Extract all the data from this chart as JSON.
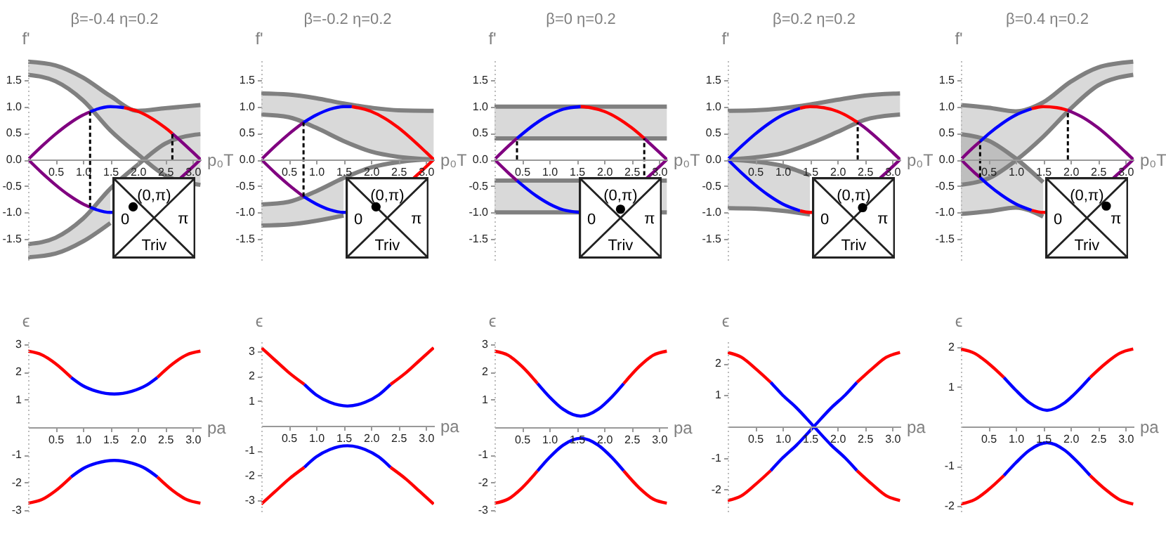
{
  "chart_data": [
    {
      "type": "line",
      "title": "β=-0.4 η=0.2",
      "xlabel": "p₀T",
      "ylabel": "f'",
      "xlim": [
        0,
        3.15
      ],
      "ylim": [
        -1.9,
        1.9
      ],
      "xticks": [
        0.5,
        {
          "value": 1,
          "label": "1.0"
        },
        1.5,
        {
          "value": 2,
          "label": "2.0"
        },
        2.5,
        {
          "value": 3,
          "label": "3.0"
        }
      ],
      "yticks": [
        -1.5,
        {
          "value": -1,
          "label": "-1.0"
        },
        -0.5,
        {
          "value": 0,
          "label": "0.0"
        },
        0.5,
        {
          "value": 1,
          "label": "1.0"
        },
        1.5
      ],
      "annotations": [
        "(0,π)",
        "0",
        "π",
        "Triv"
      ],
      "series": [
        {
          "color": "#808080",
          "x": [
            0,
            0.5,
            1.0,
            1.5,
            2.0,
            2.5,
            3.1416
          ],
          "values": [
            1.85,
            1.78,
            1.55,
            1.2,
            0.92,
            0.97,
            1.03
          ],
          "lower": [
            1.6,
            1.48,
            1.12,
            0.55,
            0.1,
            -0.3,
            -0.48
          ],
          "upper": [
            1.85,
            1.78,
            1.55,
            1.2,
            0.92,
            0.97,
            1.03
          ]
        },
        {
          "color": "#808080",
          "x": [
            0,
            0.5,
            1.0,
            1.5,
            2.0,
            2.5,
            3.05,
            3.1416
          ],
          "values": [
            -1.6,
            -1.48,
            -1.12,
            -0.55,
            -0.1,
            0.3,
            0.47,
            0.48
          ],
          "lower": [
            -1.85,
            -1.78,
            -1.55,
            -1.2,
            null,
            null,
            null,
            null
          ],
          "upper": [
            -1.6,
            -1.48,
            -1.12,
            -0.55,
            null,
            null,
            null,
            null
          ]
        },
        {
          "color": "#808080",
          "x": [
            0,
            0.5,
            1.0,
            1.5,
            2.0,
            2.5,
            3.1416
          ],
          "values": [
            1.6,
            1.48,
            1.12,
            0.55,
            0.1,
            -0.3,
            -0.48
          ]
        },
        {
          "color": "#808080",
          "x": [
            0,
            0.5,
            1.0,
            1.5
          ],
          "values": [
            -1.85,
            -1.78,
            -1.55,
            -1.2
          ]
        },
        {
          "color": "#800080",
          "x": [
            0,
            0.25,
            0.5,
            0.75,
            1.0,
            1.13
          ],
          "values": [
            0,
            0.25,
            0.48,
            0.68,
            0.84,
            0.9
          ]
        },
        {
          "color": "#0000ff",
          "x": [
            1.13,
            1.25,
            1.5,
            1.75
          ],
          "values": [
            0.9,
            0.95,
            1,
            0.98
          ]
        },
        {
          "color": "#ff0000",
          "x": [
            1.75,
            2.0,
            2.25,
            2.5,
            2.63
          ],
          "values": [
            0.98,
            0.91,
            0.78,
            0.6,
            0.49
          ]
        },
        {
          "color": "#800080",
          "x": [
            2.63,
            2.75,
            3.0,
            3.1416
          ],
          "values": [
            0.49,
            0.38,
            0.14,
            0
          ]
        },
        {
          "color": "#800080",
          "x": [
            0,
            0.25,
            0.5,
            0.75,
            1.0,
            1.13
          ],
          "values": [
            0,
            -0.25,
            -0.48,
            -0.68,
            -0.84,
            -0.9
          ]
        },
        {
          "color": "#0000ff",
          "x": [
            1.13,
            1.25,
            1.5,
            1.56
          ],
          "values": [
            -0.9,
            -0.95,
            -1,
            -1
          ]
        },
        {
          "color": "#800080",
          "x": [
            2.78,
            3.0,
            3.1416
          ],
          "values": [
            -0.35,
            -0.14,
            0
          ]
        },
        {
          "type": "line",
          "line_style": "dashed",
          "color": "#000000",
          "x": [
            1.13,
            1.13
          ],
          "values": [
            -0.9,
            0.9
          ]
        },
        {
          "type": "line",
          "line_style": "dashed",
          "color": "#000000",
          "x": [
            2.63,
            2.63
          ],
          "values": [
            0,
            0.49
          ]
        }
      ]
    },
    {
      "type": "line",
      "title": "β=-0.2 η=0.2",
      "xlabel": "p₀T",
      "ylabel": "f'",
      "xlim": [
        0,
        3.15
      ],
      "ylim": [
        -1.9,
        1.9
      ],
      "xticks": [
        0.5,
        {
          "value": 1,
          "label": "1.0"
        },
        1.5,
        {
          "value": 2,
          "label": "2.0"
        },
        2.5,
        {
          "value": 3,
          "label": "3.0"
        }
      ],
      "yticks": [
        -1.5,
        {
          "value": -1,
          "label": "-1.0"
        },
        -0.5,
        {
          "value": 0,
          "label": "0.0"
        },
        0.5,
        {
          "value": 1,
          "label": "1.0"
        },
        1.5
      ],
      "annotations": [
        "(0,π)",
        "0",
        "π",
        "Triv"
      ],
      "series": [
        {
          "color": "#808080",
          "x": [
            0,
            0.5,
            1.0,
            1.5,
            2.0,
            2.5,
            3.1416
          ],
          "values": [
            1.25,
            1.23,
            1.16,
            1.06,
            0.98,
            0.93,
            0.92
          ],
          "lower": [
            0.85,
            0.8,
            0.6,
            0.35,
            0.15,
            0.05,
            0
          ],
          "upper": [
            1.25,
            1.23,
            1.16,
            1.06,
            0.98,
            0.93,
            0.92
          ]
        },
        {
          "color": "#808080",
          "x": [
            0,
            0.5,
            1.0,
            1.5,
            2.0,
            2.5,
            3.05,
            3.1416
          ],
          "values": [
            -0.85,
            -0.8,
            -0.6,
            -0.35,
            -0.15,
            -0.05,
            0,
            0
          ],
          "lower": [
            -1.25,
            -1.23,
            -1.16,
            -1.06,
            null,
            null,
            null,
            null
          ],
          "upper": [
            -0.85,
            -0.8,
            -0.6,
            -0.35,
            null,
            null,
            null,
            null
          ]
        },
        {
          "color": "#808080",
          "x": [
            0,
            0.5,
            1.0,
            1.5,
            2.0,
            2.5,
            3.1416
          ],
          "values": [
            0.85,
            0.8,
            0.6,
            0.35,
            0.15,
            0.05,
            0
          ]
        },
        {
          "color": "#808080",
          "x": [
            0,
            0.5,
            1.0,
            1.5
          ],
          "values": [
            -1.25,
            -1.23,
            -1.16,
            -1.06
          ]
        },
        {
          "color": "#800080",
          "x": [
            0,
            0.25,
            0.5,
            0.77
          ],
          "values": [
            0,
            0.25,
            0.48,
            0.7
          ]
        },
        {
          "color": "#0000ff",
          "x": [
            0.77,
            1.0,
            1.25,
            1.5,
            1.65
          ],
          "values": [
            0.7,
            0.84,
            0.95,
            1,
            1
          ]
        },
        {
          "color": "#ff0000",
          "x": [
            1.65,
            2.0,
            2.25,
            2.5,
            2.75,
            3.0,
            3.1416
          ],
          "values": [
            1,
            0.91,
            0.78,
            0.6,
            0.38,
            0.14,
            0
          ]
        },
        {
          "color": "#800080",
          "x": [
            0,
            0.25,
            0.5,
            0.77
          ],
          "values": [
            0,
            -0.25,
            -0.48,
            -0.7
          ]
        },
        {
          "color": "#0000ff",
          "x": [
            0.77,
            1.0,
            1.25,
            1.5,
            1.56
          ],
          "values": [
            -0.7,
            -0.84,
            -0.95,
            -1,
            -1
          ]
        },
        {
          "color": "#ff0000",
          "x": [
            2.78,
            3.0,
            3.1416
          ],
          "values": [
            -0.35,
            -0.14,
            0
          ]
        },
        {
          "type": "line",
          "line_style": "dashed",
          "color": "#000000",
          "x": [
            0.77,
            0.77
          ],
          "values": [
            -0.7,
            0.7
          ]
        }
      ]
    },
    {
      "type": "line",
      "title": "β=0 η=0.2",
      "xlabel": "p₀T",
      "ylabel": "f'",
      "xlim": [
        0,
        3.15
      ],
      "ylim": [
        -1.9,
        1.9
      ],
      "xticks": [
        0.5,
        {
          "value": 1,
          "label": "1.0"
        },
        1.5,
        {
          "value": 2,
          "label": "2.0"
        },
        2.5,
        {
          "value": 3,
          "label": "3.0"
        }
      ],
      "yticks": [
        -1.5,
        {
          "value": -1,
          "label": "-1.0"
        },
        -0.5,
        {
          "value": 0,
          "label": "0.0"
        },
        0.5,
        {
          "value": 1,
          "label": "1.0"
        },
        1.5
      ],
      "annotations": [
        "(0,π)",
        "0",
        "π",
        "Triv"
      ],
      "series": [
        {
          "color": "#808080",
          "x": [
            0,
            3.1416
          ],
          "values": [
            1,
            1
          ],
          "lower": [
            0.4,
            0.4
          ],
          "upper": [
            1,
            1
          ]
        },
        {
          "color": "#808080",
          "x": [
            0,
            3.1416
          ],
          "values": [
            -0.4,
            -0.4
          ],
          "lower": [
            -1,
            -1
          ],
          "upper": [
            -0.4,
            -0.4
          ]
        },
        {
          "color": "#808080",
          "x": [
            0,
            3.1416
          ],
          "values": [
            0.4,
            0.4
          ]
        },
        {
          "color": "#808080",
          "x": [
            0,
            3.1416
          ],
          "values": [
            -1,
            -1
          ]
        },
        {
          "color": "#800080",
          "x": [
            0,
            0.25,
            0.41
          ],
          "values": [
            0,
            0.25,
            0.4
          ]
        },
        {
          "color": "#0000ff",
          "x": [
            0.41,
            0.75,
            1.0,
            1.25,
            1.571
          ],
          "values": [
            0.4,
            0.68,
            0.84,
            0.95,
            1
          ]
        },
        {
          "color": "#ff0000",
          "x": [
            1.571,
            1.75,
            2.0,
            2.25,
            2.5,
            2.73
          ],
          "values": [
            1,
            0.98,
            0.91,
            0.78,
            0.6,
            0.4
          ]
        },
        {
          "color": "#800080",
          "x": [
            2.73,
            3.0,
            3.1416
          ],
          "values": [
            0.4,
            0.14,
            0
          ]
        },
        {
          "color": "#800080",
          "x": [
            0,
            0.25,
            0.41
          ],
          "values": [
            0,
            -0.25,
            -0.4
          ]
        },
        {
          "color": "#0000ff",
          "x": [
            0.41,
            0.75,
            1.0,
            1.25,
            1.56
          ],
          "values": [
            -0.4,
            -0.68,
            -0.84,
            -0.95,
            -1
          ]
        },
        {
          "color": "#800080",
          "x": [
            2.78,
            3.0,
            3.1416
          ],
          "values": [
            -0.35,
            -0.14,
            0
          ]
        },
        {
          "type": "line",
          "line_style": "dashed",
          "color": "#000000",
          "x": [
            0.41,
            0.41
          ],
          "values": [
            0,
            0.4
          ]
        },
        {
          "type": "line",
          "line_style": "dashed",
          "color": "#000000",
          "x": [
            2.73,
            2.73
          ],
          "values": [
            -0.3,
            0.4
          ]
        }
      ]
    },
    {
      "type": "line",
      "title": "β=0.2 η=0.2",
      "xlabel": "p₀T",
      "ylabel": "f'",
      "xlim": [
        0,
        3.15
      ],
      "ylim": [
        -1.9,
        1.9
      ],
      "xticks": [
        0.5,
        {
          "value": 1,
          "label": "1.0"
        },
        1.5,
        {
          "value": 2,
          "label": "2.0"
        },
        2.5,
        {
          "value": 3,
          "label": "3.0"
        }
      ],
      "yticks": [
        -1.5,
        {
          "value": -1,
          "label": "-1.0"
        },
        -0.5,
        {
          "value": 0,
          "label": "0.0"
        },
        0.5,
        {
          "value": 1,
          "label": "1.0"
        },
        1.5
      ],
      "annotations": [
        "(0,π)",
        "0",
        "π",
        "Triv"
      ],
      "series": [
        {
          "color": "#808080",
          "x": [
            0,
            0.5,
            1.0,
            1.5,
            2.0,
            2.5,
            3.1416
          ],
          "values": [
            0.92,
            0.93,
            0.97,
            1.04,
            1.13,
            1.21,
            1.25
          ],
          "lower": [
            0,
            0.04,
            0.12,
            0.3,
            0.52,
            0.75,
            0.85
          ],
          "upper": [
            0.92,
            0.93,
            0.97,
            1.04,
            1.13,
            1.21,
            1.25
          ]
        },
        {
          "color": "#808080",
          "x": [
            0,
            0.5,
            1.0,
            1.5
          ],
          "values": [
            0,
            -0.04,
            -0.12,
            -0.3
          ],
          "lower": [
            -0.92,
            -0.93,
            -0.97,
            -1.04
          ],
          "upper": [
            0,
            -0.04,
            -0.12,
            -0.3
          ]
        },
        {
          "color": "#808080",
          "x": [
            0,
            0.5,
            1.0,
            1.5,
            2.0,
            2.5,
            3.1416
          ],
          "values": [
            0,
            0.04,
            0.12,
            0.3,
            0.52,
            0.75,
            0.85
          ]
        },
        {
          "color": "#808080",
          "x": [
            0,
            0.5,
            1.0,
            1.5
          ],
          "values": [
            -0.92,
            -0.93,
            -0.97,
            -1.04
          ]
        },
        {
          "color": "#0000ff",
          "x": [
            0,
            0.25,
            0.5,
            0.75,
            1.0,
            1.32
          ],
          "values": [
            0,
            0.25,
            0.48,
            0.68,
            0.84,
            0.97
          ]
        },
        {
          "color": "#ff0000",
          "x": [
            1.32,
            1.5,
            1.75,
            2.0,
            2.25,
            2.37
          ],
          "values": [
            0.97,
            1,
            0.98,
            0.91,
            0.78,
            0.7
          ]
        },
        {
          "color": "#800080",
          "x": [
            2.37,
            2.5,
            2.75,
            3.0,
            3.1416
          ],
          "values": [
            0.7,
            0.6,
            0.38,
            0.14,
            0
          ]
        },
        {
          "color": "#0000ff",
          "x": [
            0,
            0.25,
            0.5,
            0.75,
            1.0,
            1.32
          ],
          "values": [
            0,
            -0.25,
            -0.48,
            -0.68,
            -0.84,
            -0.97
          ]
        },
        {
          "color": "#ff0000",
          "x": [
            1.32,
            1.5,
            1.56
          ],
          "values": [
            -0.97,
            -1,
            -1
          ]
        },
        {
          "color": "#800080",
          "x": [
            2.78,
            3.0,
            3.1416
          ],
          "values": [
            -0.35,
            -0.14,
            0
          ]
        },
        {
          "type": "line",
          "line_style": "dashed",
          "color": "#000000",
          "x": [
            2.37,
            2.37
          ],
          "values": [
            0,
            0.7
          ]
        }
      ]
    },
    {
      "type": "line",
      "title": "β=0.4 η=0.2",
      "xlabel": "p₀T",
      "ylabel": "f'",
      "xlim": [
        0,
        3.15
      ],
      "ylim": [
        -1.9,
        1.9
      ],
      "xticks": [
        0.5,
        {
          "value": 1,
          "label": "1.0"
        },
        1.5,
        {
          "value": 2,
          "label": "2.0"
        },
        2.5,
        {
          "value": 3,
          "label": "3.0"
        }
      ],
      "yticks": [
        -1.5,
        {
          "value": -1,
          "label": "-1.0"
        },
        -0.5,
        {
          "value": 0,
          "label": "0.0"
        },
        0.5,
        {
          "value": 1,
          "label": "1.0"
        },
        1.5
      ],
      "annotations": [
        "(0,π)",
        "0",
        "π",
        "Triv"
      ],
      "series": [
        {
          "color": "#808080",
          "x": [
            0,
            0.5,
            1.0,
            1.5,
            2.0,
            2.5,
            3.1416
          ],
          "values": [
            1.03,
            0.98,
            0.91,
            1.08,
            1.47,
            1.74,
            1.85
          ],
          "lower": [
            -0.48,
            -0.36,
            -0.02,
            0.43,
            0.96,
            1.4,
            1.6
          ],
          "upper": [
            1.03,
            0.98,
            0.91,
            1.08,
            1.47,
            1.74,
            1.85
          ]
        },
        {
          "color": "#808080",
          "x": [
            0,
            0.5,
            1.0,
            1.5
          ],
          "values": [
            0.48,
            0.36,
            0.02,
            -0.43
          ],
          "lower": [
            -1.03,
            -0.98,
            -0.91,
            -1.08
          ],
          "upper": [
            0.48,
            0.36,
            0.02,
            -0.43
          ]
        },
        {
          "color": "#808080",
          "x": [
            0,
            0.5,
            1.0,
            1.5,
            2.0,
            2.5,
            3.1416
          ],
          "values": [
            -0.48,
            -0.36,
            -0.02,
            0.43,
            0.96,
            1.4,
            1.6
          ]
        },
        {
          "color": "#808080",
          "x": [
            0,
            0.5,
            1.0,
            1.5
          ],
          "values": [
            -1.03,
            -0.98,
            -0.91,
            -1.08
          ]
        },
        {
          "color": "#800080",
          "x": [
            0,
            0.25,
            0.35
          ],
          "values": [
            0,
            0.25,
            0.34
          ]
        },
        {
          "color": "#0000ff",
          "x": [
            0.35,
            0.5,
            0.75,
            1.0,
            1.29
          ],
          "values": [
            0.34,
            0.48,
            0.68,
            0.84,
            0.96
          ]
        },
        {
          "color": "#ff0000",
          "x": [
            1.29,
            1.5,
            1.75,
            1.95
          ],
          "values": [
            0.96,
            1,
            0.98,
            0.93
          ]
        },
        {
          "color": "#800080",
          "x": [
            1.95,
            2.25,
            2.5,
            2.75,
            3.0,
            3.1416
          ],
          "values": [
            0.93,
            0.78,
            0.6,
            0.38,
            0.14,
            0
          ]
        },
        {
          "color": "#800080",
          "x": [
            0,
            0.25,
            0.35
          ],
          "values": [
            0,
            -0.25,
            -0.34
          ]
        },
        {
          "color": "#0000ff",
          "x": [
            0.35,
            0.5,
            0.75,
            1.0,
            1.29
          ],
          "values": [
            -0.34,
            -0.48,
            -0.68,
            -0.84,
            -0.96
          ]
        },
        {
          "color": "#ff0000",
          "x": [
            1.29,
            1.5,
            1.56
          ],
          "values": [
            -0.96,
            -1,
            -1
          ]
        },
        {
          "color": "#800080",
          "x": [
            2.78,
            3.0,
            3.1416
          ],
          "values": [
            -0.35,
            -0.14,
            0
          ]
        },
        {
          "type": "line",
          "line_style": "dashed",
          "color": "#000000",
          "x": [
            1.95,
            1.95
          ],
          "values": [
            0,
            0.93
          ]
        },
        {
          "type": "line",
          "line_style": "dashed",
          "color": "#000000",
          "x": [
            0.35,
            0.35
          ],
          "values": [
            -0.34,
            0.34
          ]
        }
      ]
    },
    {
      "type": "line",
      "xlabel": "pa",
      "ylabel": "ϵ",
      "xlim": [
        0,
        3.15
      ],
      "ylim": [
        -3.05,
        3.1
      ],
      "xticks": [
        0.5,
        {
          "value": 1,
          "label": "1.0"
        },
        1.5,
        {
          "value": 2,
          "label": "2.0"
        },
        2.5,
        {
          "value": 3,
          "label": "3.0"
        }
      ],
      "yticks": [
        -3,
        -2,
        -1,
        1,
        2,
        3
      ],
      "series": [
        {
          "color": "#ff0000",
          "x": [
            0,
            0.25,
            0.5,
            0.785
          ],
          "values": [
            2.75,
            2.62,
            2.3,
            1.8
          ]
        },
        {
          "color": "#0000ff",
          "x": [
            0.785,
            1.0,
            1.25,
            1.571,
            1.892,
            2.142,
            2.356
          ],
          "values": [
            1.8,
            1.5,
            1.3,
            1.2,
            1.3,
            1.5,
            1.8
          ]
        },
        {
          "color": "#ff0000",
          "x": [
            2.356,
            2.642,
            2.892,
            3.1416
          ],
          "values": [
            1.8,
            2.3,
            2.62,
            2.75
          ]
        },
        {
          "color": "#ff0000",
          "x": [
            0,
            0.25,
            0.5,
            0.785
          ],
          "values": [
            -2.75,
            -2.62,
            -2.3,
            -1.8
          ]
        },
        {
          "color": "#0000ff",
          "x": [
            0.785,
            1.0,
            1.25,
            1.571,
            1.892,
            2.142,
            2.356
          ],
          "values": [
            -1.8,
            -1.5,
            -1.3,
            -1.2,
            -1.3,
            -1.5,
            -1.8
          ]
        },
        {
          "color": "#ff0000",
          "x": [
            2.356,
            2.642,
            2.892,
            3.1416
          ],
          "values": [
            -1.8,
            -2.3,
            -2.62,
            -2.75
          ]
        }
      ]
    },
    {
      "type": "line",
      "xlabel": "pa",
      "ylabel": "ϵ",
      "xlim": [
        0,
        3.15
      ],
      "ylim": [
        -3.45,
        3.4
      ],
      "xticks": [
        0.5,
        {
          "value": 1,
          "label": "1.0"
        },
        1.5,
        {
          "value": 2,
          "label": "2.0"
        },
        2.5,
        {
          "value": 3,
          "label": "3.0"
        }
      ],
      "yticks": [
        -3,
        -2,
        -1,
        1,
        2,
        3
      ],
      "series": [
        {
          "color": "#ff0000",
          "x": [
            0,
            0.25,
            0.5,
            0.785
          ],
          "values": [
            3.15,
            2.65,
            2.15,
            1.67
          ]
        },
        {
          "color": "#0000ff",
          "x": [
            0.785,
            1.0,
            1.25,
            1.571,
            1.892,
            2.142,
            2.356
          ],
          "values": [
            1.67,
            1.25,
            0.95,
            0.8,
            0.95,
            1.25,
            1.67
          ]
        },
        {
          "color": "#ff0000",
          "x": [
            2.356,
            2.642,
            2.892,
            3.1416
          ],
          "values": [
            1.67,
            2.15,
            2.65,
            3.15
          ]
        },
        {
          "color": "#ff0000",
          "x": [
            0,
            0.25,
            0.5,
            0.785
          ],
          "values": [
            -3.15,
            -2.65,
            -2.15,
            -1.67
          ]
        },
        {
          "color": "#0000ff",
          "x": [
            0.785,
            1.0,
            1.25,
            1.571,
            1.892,
            2.142,
            2.356
          ],
          "values": [
            -1.67,
            -1.25,
            -0.95,
            -0.8,
            -0.95,
            -1.25,
            -1.67
          ]
        },
        {
          "color": "#ff0000",
          "x": [
            2.356,
            2.642,
            2.892,
            3.1416
          ],
          "values": [
            -1.67,
            -2.15,
            -2.65,
            -3.15
          ]
        }
      ]
    },
    {
      "type": "line",
      "xlabel": "pa",
      "ylabel": "ϵ",
      "xlim": [
        0,
        3.15
      ],
      "ylim": [
        -3.05,
        3.1
      ],
      "xticks": [
        0.5,
        {
          "value": 1,
          "label": "1.0"
        },
        1.5,
        {
          "value": 2,
          "label": "2.0"
        },
        2.5,
        {
          "value": 3,
          "label": "3.0"
        }
      ],
      "yticks": [
        -3,
        -2,
        -1,
        1,
        2,
        3
      ],
      "series": [
        {
          "color": "#ff0000",
          "x": [
            0,
            0.25,
            0.5,
            0.785
          ],
          "values": [
            2.75,
            2.6,
            2.2,
            1.58
          ]
        },
        {
          "color": "#0000ff",
          "x": [
            0.785,
            1.0,
            1.25,
            1.571,
            1.892,
            2.142,
            2.356
          ],
          "values": [
            1.58,
            1.1,
            0.65,
            0.4,
            0.65,
            1.1,
            1.58
          ]
        },
        {
          "color": "#ff0000",
          "x": [
            2.356,
            2.642,
            2.892,
            3.1416
          ],
          "values": [
            1.58,
            2.2,
            2.6,
            2.75
          ]
        },
        {
          "color": "#ff0000",
          "x": [
            0,
            0.25,
            0.5,
            0.785
          ],
          "values": [
            -2.75,
            -2.6,
            -2.2,
            -1.58
          ]
        },
        {
          "color": "#0000ff",
          "x": [
            0.785,
            1.0,
            1.25,
            1.571,
            1.892,
            2.142,
            2.356
          ],
          "values": [
            -1.58,
            -1.1,
            -0.65,
            -0.4,
            -0.65,
            -1.1,
            -1.58
          ]
        },
        {
          "color": "#ff0000",
          "x": [
            2.356,
            2.642,
            2.892,
            3.1416
          ],
          "values": [
            -1.58,
            -2.2,
            -2.6,
            -2.75
          ]
        }
      ]
    },
    {
      "type": "line",
      "xlabel": "pa",
      "ylabel": "ϵ",
      "xlim": [
        0,
        3.15
      ],
      "ylim": [
        -2.7,
        2.7
      ],
      "xticks": [
        0.5,
        {
          "value": 1,
          "label": "1.0"
        },
        1.5,
        {
          "value": 2,
          "label": "2.0"
        },
        2.5,
        {
          "value": 3,
          "label": "3.0"
        }
      ],
      "yticks": [
        -2,
        -1,
        1,
        2
      ],
      "series": [
        {
          "color": "#ff0000",
          "x": [
            0,
            0.25,
            0.5,
            0.785
          ],
          "values": [
            2.35,
            2.2,
            1.85,
            1.4
          ]
        },
        {
          "color": "#0000ff",
          "x": [
            0.785,
            1.0,
            1.25,
            1.571,
            1.892,
            2.142,
            2.356
          ],
          "values": [
            1.4,
            1.0,
            0.6,
            0,
            -0.6,
            -1.0,
            -1.4
          ]
        },
        {
          "color": "#ff0000",
          "x": [
            2.356,
            2.642,
            2.892,
            3.1416
          ],
          "values": [
            -1.4,
            -1.85,
            -2.2,
            -2.35
          ]
        },
        {
          "color": "#ff0000",
          "x": [
            0,
            0.25,
            0.5,
            0.785
          ],
          "values": [
            -2.35,
            -2.2,
            -1.85,
            -1.4
          ]
        },
        {
          "color": "#0000ff",
          "x": [
            0.785,
            1.0,
            1.25,
            1.571,
            1.892,
            2.142,
            2.356
          ],
          "values": [
            -1.4,
            -1.0,
            -0.6,
            0,
            0.6,
            1.0,
            1.4
          ]
        },
        {
          "color": "#ff0000",
          "x": [
            2.356,
            2.642,
            2.892,
            3.1416
          ],
          "values": [
            1.4,
            1.85,
            2.2,
            2.35
          ]
        }
      ]
    },
    {
      "type": "line",
      "xlabel": "pa",
      "ylabel": "ϵ",
      "xlim": [
        0,
        3.15
      ],
      "ylim": [
        -2.15,
        2.15
      ],
      "xticks": [
        0.5,
        {
          "value": 1,
          "label": "1.0"
        },
        1.5,
        {
          "value": 2,
          "label": "2.0"
        },
        2.5,
        {
          "value": 3,
          "label": "3.0"
        }
      ],
      "yticks": [
        -2,
        -1,
        1,
        2
      ],
      "series": [
        {
          "color": "#ff0000",
          "x": [
            0,
            0.25,
            0.5,
            0.785
          ],
          "values": [
            1.96,
            1.85,
            1.6,
            1.24
          ]
        },
        {
          "color": "#0000ff",
          "x": [
            0.785,
            1.0,
            1.25,
            1.571,
            1.892,
            2.142,
            2.356
          ],
          "values": [
            1.24,
            0.92,
            0.6,
            0.41,
            0.6,
            0.92,
            1.24
          ]
        },
        {
          "color": "#ff0000",
          "x": [
            2.356,
            2.642,
            2.892,
            3.1416
          ],
          "values": [
            1.24,
            1.6,
            1.85,
            1.96
          ]
        },
        {
          "color": "#ff0000",
          "x": [
            0,
            0.25,
            0.5,
            0.785
          ],
          "values": [
            -1.96,
            -1.85,
            -1.6,
            -1.24
          ]
        },
        {
          "color": "#0000ff",
          "x": [
            0.785,
            1.0,
            1.25,
            1.571,
            1.892,
            2.142,
            2.356
          ],
          "values": [
            -1.24,
            -0.92,
            -0.6,
            -0.41,
            -0.6,
            -0.92,
            -1.24
          ]
        },
        {
          "color": "#ff0000",
          "x": [
            2.356,
            2.642,
            2.892,
            3.1416
          ],
          "values": [
            -1.24,
            -1.6,
            -1.85,
            -1.96
          ]
        }
      ]
    }
  ]
}
